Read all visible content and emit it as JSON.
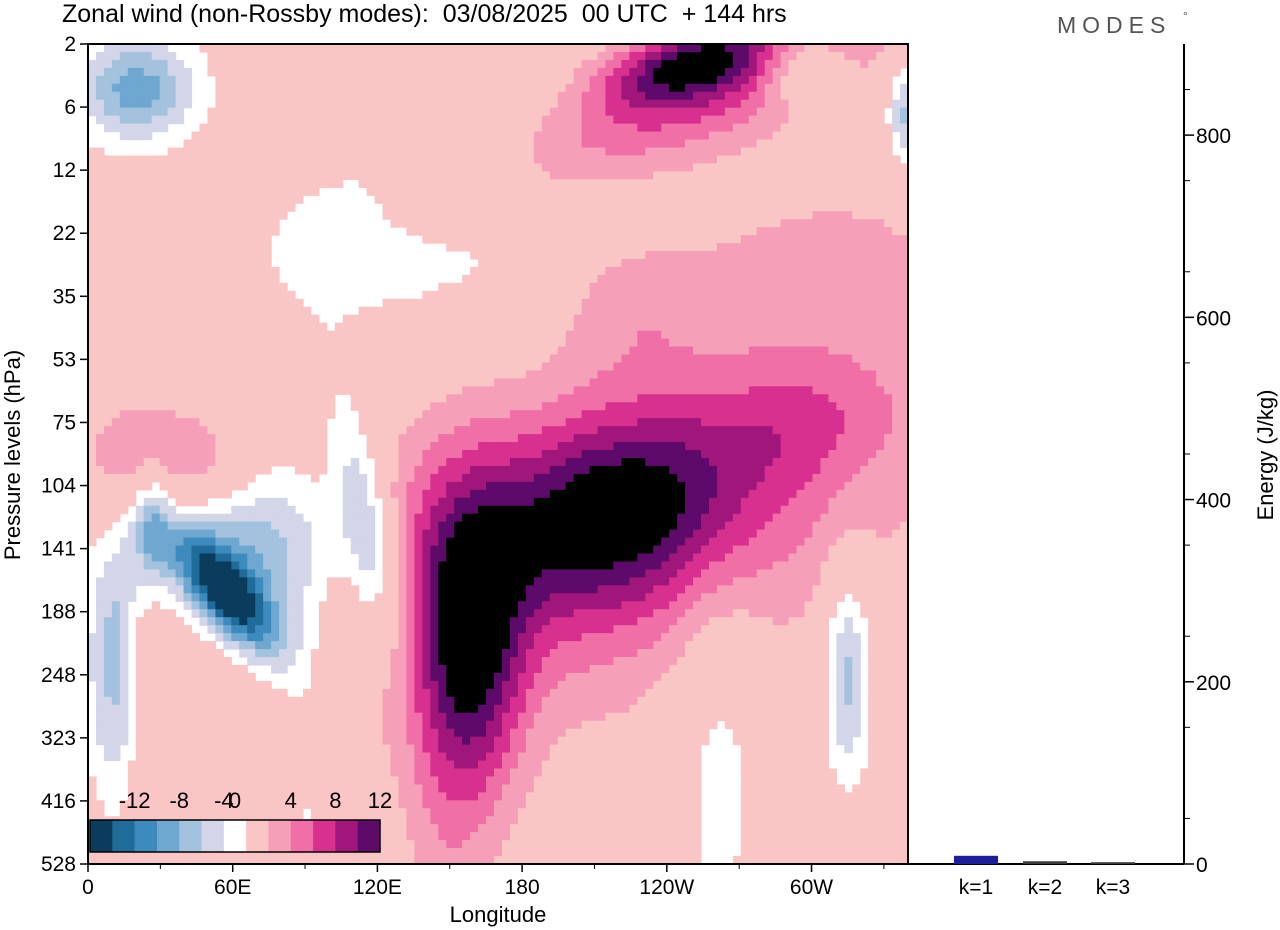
{
  "chart_data": {
    "type": "heatmap",
    "title": "Zonal wind (non-Rossby modes):  03/08/2025  00 UTC  + 144 hrs",
    "brand": "MODES",
    "brand_mark": "°",
    "xlabel": "Longitude",
    "ylabel": "Pressure levels (hPa)",
    "x_ticks": [
      "0",
      "60E",
      "120E",
      "180",
      "120W",
      "60W"
    ],
    "x_range_deg": [
      0,
      340
    ],
    "y_levels": [
      "2",
      "6",
      "12",
      "22",
      "35",
      "53",
      "75",
      "104",
      "141",
      "188",
      "248",
      "323",
      "416",
      "528"
    ],
    "colorbar": {
      "ticks": [
        "-12",
        "-8",
        "-4",
        "0",
        "4",
        "8",
        "12"
      ],
      "levels": [
        -14,
        -12,
        -10,
        -8,
        -6,
        -4,
        -2,
        2,
        4,
        6,
        8,
        10,
        12,
        14
      ],
      "colors": [
        "#0b3c5d",
        "#1f6b99",
        "#3d8abd",
        "#6ea7cf",
        "#a3c2dd",
        "#d3d5e8",
        "#ffffff",
        "#f9c5c5",
        "#f5a0b8",
        "#ef6fa6",
        "#d8308e",
        "#a1167a",
        "#5d0a6a"
      ]
    },
    "features": [
      {
        "name": "easterly-core-60E",
        "lon": 57,
        "lev": 8.7,
        "value": -14,
        "sx": 9,
        "sy": 0.85,
        "rot": -40
      },
      {
        "name": "easterly-band-60E",
        "lon": 68,
        "lev": 8.0,
        "value": -8,
        "sx": 24,
        "sy": 1.0,
        "rot": -35
      },
      {
        "name": "easterly-120E",
        "lon": 116,
        "lev": 7.8,
        "value": -7,
        "sx": 8,
        "sy": 1.4,
        "rot": -10
      },
      {
        "name": "easterly-25E",
        "lon": 26,
        "lev": 7.6,
        "value": -7,
        "sx": 6,
        "sy": 0.7,
        "rot": 0
      },
      {
        "name": "easterly-5E",
        "lon": 5,
        "lev": 9.8,
        "value": -5,
        "sx": 6,
        "sy": 1.6,
        "rot": 0
      },
      {
        "name": "easterly-15E",
        "lon": 14,
        "lev": 9.8,
        "value": -5,
        "sx": 5,
        "sy": 1.6,
        "rot": 0
      },
      {
        "name": "easterly-upper-west",
        "lon": 20,
        "lev": 0.7,
        "value": -9,
        "sx": 18,
        "sy": 0.6,
        "rot": -5
      },
      {
        "name": "easterly-330",
        "lon": 315,
        "lev": 10.0,
        "value": -7,
        "sx": 7,
        "sy": 1.2,
        "rot": 0
      },
      {
        "name": "easterly-top-east",
        "lon": 340,
        "lev": 1.1,
        "value": -7,
        "sx": 6,
        "sy": 0.6,
        "rot": 0
      },
      {
        "name": "easterly-290",
        "lon": 296,
        "lev": 0.4,
        "value": -5,
        "sx": 12,
        "sy": 0.4,
        "rot": 0
      },
      {
        "name": "easterly-midlevel",
        "lon": 158,
        "lev": 2.7,
        "value": -4,
        "sx": 80,
        "sy": 1.3,
        "rot": -14
      },
      {
        "name": "easterly-low-250",
        "lon": 262,
        "lev": 11.2,
        "value": -3,
        "sx": 14,
        "sy": 2.4,
        "rot": 0
      },
      {
        "name": "easterly-low-90",
        "lon": 90,
        "lev": 11.0,
        "value": -3,
        "sx": 16,
        "sy": 2.5,
        "rot": 0
      },
      {
        "name": "westerly-core-155W",
        "lon": 218,
        "lev": 7.4,
        "value": 9,
        "sx": 40,
        "sy": 1.0,
        "rot": -18
      },
      {
        "name": "westerly-band",
        "lon": 208,
        "lev": 7.9,
        "value": 6,
        "sx": 95,
        "sy": 1.8,
        "rot": -20
      },
      {
        "name": "westerly-160E",
        "lon": 162,
        "lev": 9.5,
        "value": 8,
        "sx": 14,
        "sy": 1.6,
        "rot": 0
      },
      {
        "name": "westerly-150E",
        "lon": 150,
        "lev": 10.6,
        "value": 4,
        "sx": 14,
        "sy": 2.5,
        "rot": 0
      },
      {
        "name": "westerly-upper",
        "lon": 238,
        "lev": 1.1,
        "value": 7,
        "sx": 70,
        "sy": 0.7,
        "rot": -22
      },
      {
        "name": "westerly-top",
        "lon": 250,
        "lev": 0.3,
        "value": 10,
        "sx": 25,
        "sy": 0.4,
        "rot": -15
      },
      {
        "name": "westerly-20E",
        "lon": 22,
        "lev": 6.6,
        "value": 5,
        "sx": 18,
        "sy": 0.7,
        "rot": -35
      },
      {
        "name": "westerly-55E",
        "lon": 54,
        "lev": 6.7,
        "value": 3,
        "sx": 14,
        "sy": 0.6,
        "rot": -20
      },
      {
        "name": "westerly-strat-east",
        "lon": 290,
        "lev": 3.3,
        "value": 2.5,
        "sx": 60,
        "sy": 1.3,
        "rot": 0
      },
      {
        "name": "westerly-strat-mid",
        "lon": 222,
        "lev": 4.0,
        "value": 2.5,
        "sx": 22,
        "sy": 0.8,
        "rot": 0
      },
      {
        "name": "westerly-300",
        "lon": 298,
        "lev": 6.0,
        "value": 3,
        "sx": 30,
        "sy": 0.7,
        "rot": -12
      }
    ],
    "energy_axis": {
      "label": "Energy (J/kg)",
      "ticks": [
        "0",
        "200",
        "400",
        "600",
        "800"
      ],
      "range": [
        0,
        900
      ]
    },
    "energy_bars": {
      "type": "bar",
      "categories": [
        "k=1",
        "k=2",
        "k=3"
      ],
      "values": [
        9,
        3,
        2
      ],
      "colors": [
        "#1e1e9c",
        "#3b3b3b",
        "#3b3b3b"
      ]
    }
  }
}
